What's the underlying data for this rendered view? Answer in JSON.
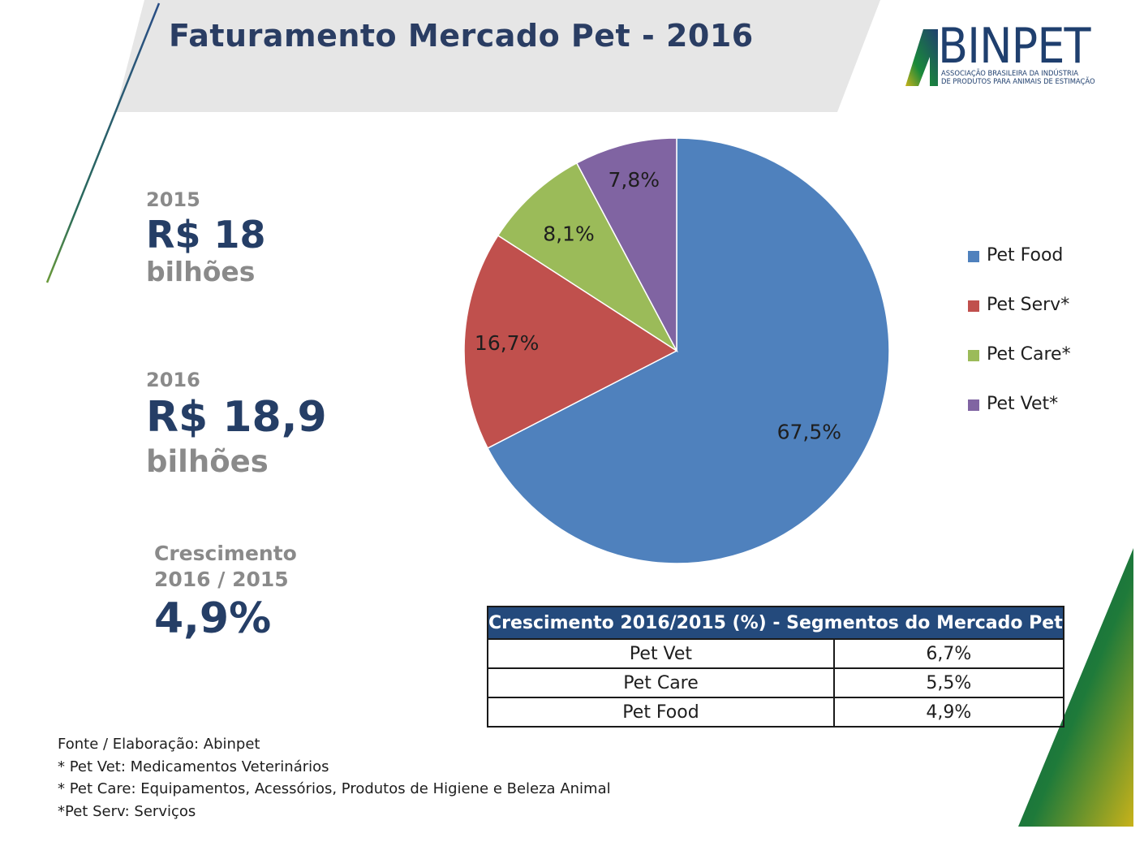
{
  "header": {
    "title": "Faturamento Mercado Pet - 2016",
    "band_color": "#e6e6e6",
    "accent_color": "#2a3d63"
  },
  "logo": {
    "name": "ABINPET",
    "word": "BINPET",
    "subtitle_line1": "ASSOCIAÇÃO BRASILEIRA DA INDÚSTRIA",
    "subtitle_line2": "DE PRODUTOS PARA ANIMAIS DE ESTIMAÇÃO",
    "colors": [
      "#1f3f6e",
      "#1a8a3a",
      "#c8b21a"
    ]
  },
  "stats": {
    "y2015": {
      "year": "2015",
      "value": "R$ 18",
      "unit": "bilhões"
    },
    "y2016": {
      "year": "2016",
      "value": "R$ 18,9",
      "unit": "bilhões"
    },
    "growth": {
      "label_line1": "Crescimento",
      "label_line2": "2016 / 2015",
      "value": "4,9%"
    }
  },
  "chart_data": {
    "type": "pie",
    "title": "Faturamento Mercado Pet - 2016",
    "categories": [
      "Pet Food",
      "Pet Serv*",
      "Pet Care*",
      "Pet Vet*"
    ],
    "values": [
      67.5,
      16.7,
      8.1,
      7.8
    ],
    "labels": [
      "67,5%",
      "16,7%",
      "8,1%",
      "7,8%"
    ],
    "colors": [
      "#4f81bd",
      "#c0504d",
      "#9bbb59",
      "#8064a2"
    ],
    "legend": "right"
  },
  "table": {
    "header": "Crescimento 2016/2015 (%) - Segmentos do Mercado Pet",
    "rows": [
      {
        "segment": "Pet Vet",
        "value": "6,7%"
      },
      {
        "segment": "Pet Care",
        "value": "5,5%"
      },
      {
        "segment": "Pet Food",
        "value": "4,9%"
      }
    ]
  },
  "notes": [
    "Fonte /  Elaboração: Abinpet",
    "* Pet Vet: Medicamentos Veterinários",
    "* Pet Care: Equipamentos, Acessórios, Produtos de Higiene e Beleza Animal",
    "*Pet Serv: Serviços"
  ]
}
